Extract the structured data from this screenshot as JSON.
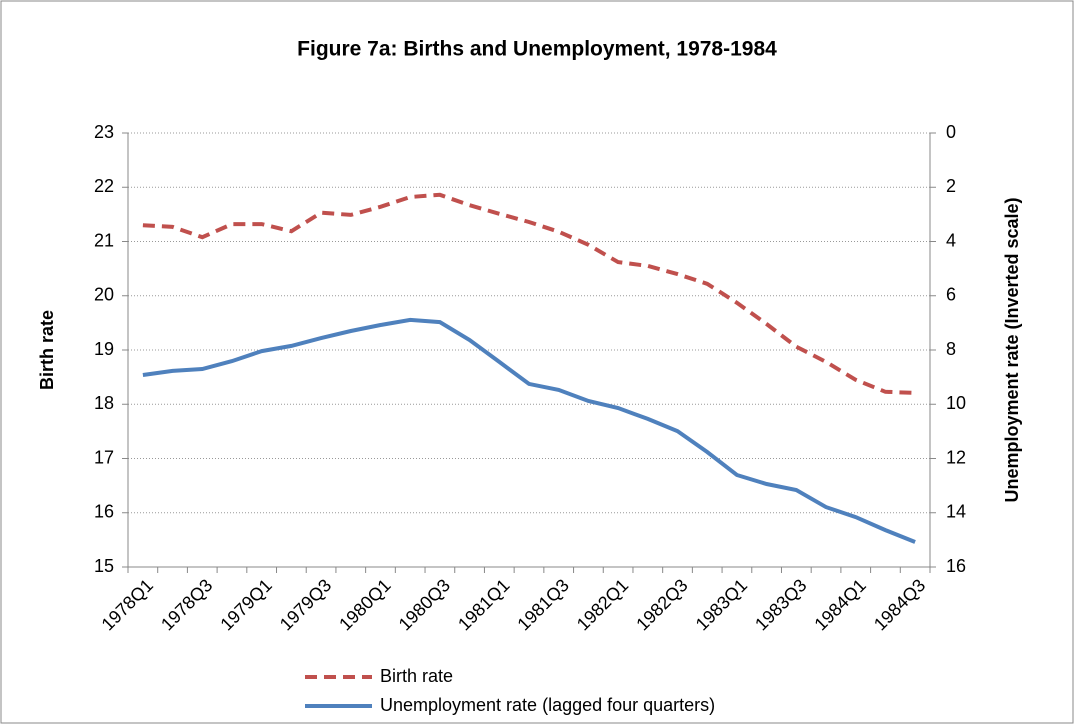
{
  "chart_data": {
    "type": "line",
    "title": "Figure 7a:  Births and Unemployment, 1978-1984",
    "y_label": "Birth rate",
    "y2_label": "Unemployment rate (Inverted scale)",
    "categories": [
      "1978Q1",
      null,
      "1978Q3",
      null,
      "1979Q1",
      null,
      "1979Q3",
      null,
      "1980Q1",
      null,
      "1980Q3",
      null,
      "1981Q1",
      null,
      "1981Q3",
      null,
      "1982Q1",
      null,
      "1982Q3",
      null,
      "1983Q1",
      null,
      "1983Q3",
      null,
      "1984Q1",
      null,
      "1984Q3"
    ],
    "series": [
      {
        "name": "Birth rate",
        "color": "#c0504d",
        "line_style": "dashed",
        "axis": "y",
        "values": [
          21.3,
          21.27,
          21.08,
          21.32,
          21.32,
          21.19,
          21.53,
          21.49,
          21.64,
          21.82,
          21.86,
          21.67,
          21.51,
          21.36,
          21.18,
          20.94,
          20.62,
          20.55,
          20.4,
          20.22,
          19.87,
          19.48,
          19.06,
          18.78,
          18.45,
          18.23,
          18.21
        ]
      },
      {
        "name": "Unemployment rate (lagged four quarters)",
        "color": "#4f81bd",
        "line_style": "solid",
        "axis": "y2",
        "values": [
          8.92,
          8.77,
          8.7,
          8.41,
          8.04,
          7.85,
          7.56,
          7.3,
          7.08,
          6.89,
          6.97,
          7.63,
          8.44,
          9.25,
          9.47,
          9.88,
          10.14,
          10.54,
          10.99,
          11.76,
          12.61,
          12.94,
          13.16,
          13.79,
          14.16,
          14.64,
          15.08
        ]
      }
    ],
    "ylim": [
      15,
      23
    ],
    "yticks": [
      15,
      16,
      17,
      18,
      19,
      20,
      21,
      22,
      23
    ],
    "y2lim": [
      0,
      16
    ],
    "y2ticks": [
      0,
      2,
      4,
      6,
      8,
      10,
      12,
      14,
      16
    ],
    "y2_inverted": true,
    "grid": true,
    "legend": "bottom"
  }
}
